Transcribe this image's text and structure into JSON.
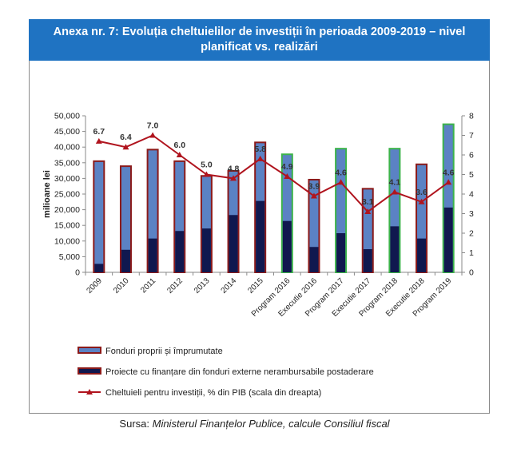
{
  "title": "Anexa nr. 7: Evoluția cheltuielilor de investiții în perioada 2009-2019 – nivel planificat vs. realizări",
  "source": {
    "prefix": "Sursa: ",
    "text": "Ministerul Finanțelor Publice, calcule Consiliul fiscal"
  },
  "colors": {
    "title_bg": "#1f73c2",
    "fonduri_fill": "#5b82c4",
    "externe_fill": "#10184f",
    "line": "#b0141e",
    "border_realizat": "#8b1a1a",
    "border_program": "#3cb34a"
  },
  "chart_data": {
    "type": "bar",
    "categories": [
      "2009",
      "2010",
      "2011",
      "2012",
      "2013",
      "2014",
      "2015",
      "Program 2016",
      "Executie 2016",
      "Program 2017",
      "Executie 2017",
      "Program 2018",
      "Executie 2018",
      "Program 2019"
    ],
    "ylabel": "milioane lei",
    "ylim": [
      0,
      50000
    ],
    "yticks": [
      "0",
      "5,000",
      "10,000",
      "15,000",
      "20,000",
      "25,000",
      "30,000",
      "35,000",
      "40,000",
      "45,000",
      "50,000"
    ],
    "y2lim": [
      0,
      8
    ],
    "y2ticks": [
      "0",
      "1",
      "2",
      "3",
      "4",
      "5",
      "6",
      "7",
      "8"
    ],
    "stacked": true,
    "series": [
      {
        "name": "Fonduri proprii și împrumutate",
        "kind": "bar",
        "values": [
          32800,
          26700,
          28400,
          22300,
          16800,
          14100,
          18700,
          21300,
          21500,
          27000,
          19300,
          24800,
          23700,
          26600
        ]
      },
      {
        "name": "Proiecte cu finanțare din fonduri externe nerambursabile postaderare",
        "kind": "bar",
        "values": [
          2700,
          7200,
          10800,
          13200,
          14000,
          18300,
          22800,
          16400,
          8100,
          12500,
          7400,
          14700,
          10800,
          20700
        ]
      },
      {
        "name": "Cheltuieli pentru investiții, % din PIB (scala din dreapta)",
        "kind": "line",
        "axis": "right",
        "values": [
          6.7,
          6.4,
          7.0,
          6.0,
          5.0,
          4.8,
          5.8,
          4.9,
          3.9,
          4.6,
          3.1,
          4.1,
          3.6,
          4.6
        ],
        "labels": [
          "6.7",
          "6.4",
          "7.0",
          "6.0",
          "5.0",
          "4.8",
          "5.8",
          "4.9",
          "3.9",
          "4.6",
          "3.1",
          "4.1",
          "3.6",
          "4.6"
        ]
      }
    ],
    "bar_border": [
      "realizat",
      "realizat",
      "realizat",
      "realizat",
      "realizat",
      "realizat",
      "realizat",
      "program",
      "realizat",
      "program",
      "realizat",
      "program",
      "realizat",
      "program"
    ],
    "legend": "bottom-left",
    "grid": false
  }
}
